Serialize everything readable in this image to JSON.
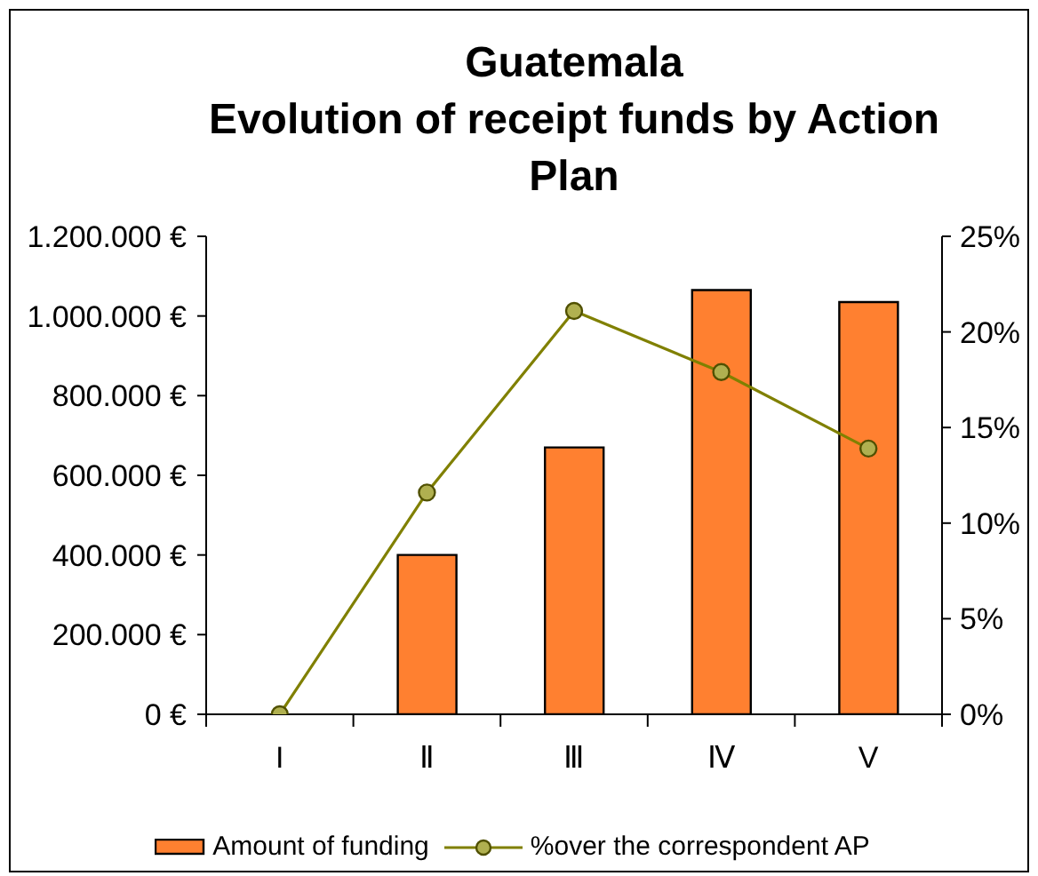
{
  "chart_data": {
    "type": "bar",
    "title": "Guatemala",
    "subtitle": "Evolution of receipt funds by Action Plan",
    "categories": [
      "I",
      "Ⅱ",
      "Ⅲ",
      "Ⅳ",
      "V"
    ],
    "series": [
      {
        "name": "Amount of funding",
        "color": "#ff8030",
        "values": [
          0,
          400000,
          670000,
          1065000,
          1035000
        ]
      },
      {
        "name": "%over the correspondent AP",
        "type": "line",
        "axis": "y2",
        "color": "#808000",
        "values": [
          0,
          11.6,
          21.1,
          17.9,
          13.9
        ]
      }
    ],
    "ylim": [
      0,
      1200000
    ],
    "yticks": [
      {
        "value": 0,
        "label": "0 €"
      },
      {
        "value": 200000,
        "label": "200.000 €"
      },
      {
        "value": 400000,
        "label": "400.000 €"
      },
      {
        "value": 600000,
        "label": "600.000 €"
      },
      {
        "value": 800000,
        "label": "800.000 €"
      },
      {
        "value": 1000000,
        "label": "1.000.000 €"
      },
      {
        "value": 1200000,
        "label": "1.200.000 €"
      }
    ],
    "y2lim": [
      0,
      25
    ],
    "y2ticks": [
      {
        "value": 0,
        "label": "0%"
      },
      {
        "value": 5,
        "label": "5%"
      },
      {
        "value": 10,
        "label": "10%"
      },
      {
        "value": 15,
        "label": "15%"
      },
      {
        "value": 20,
        "label": "20%"
      },
      {
        "value": 25,
        "label": "25%"
      }
    ],
    "marker": "circle",
    "legend": "bottom"
  }
}
